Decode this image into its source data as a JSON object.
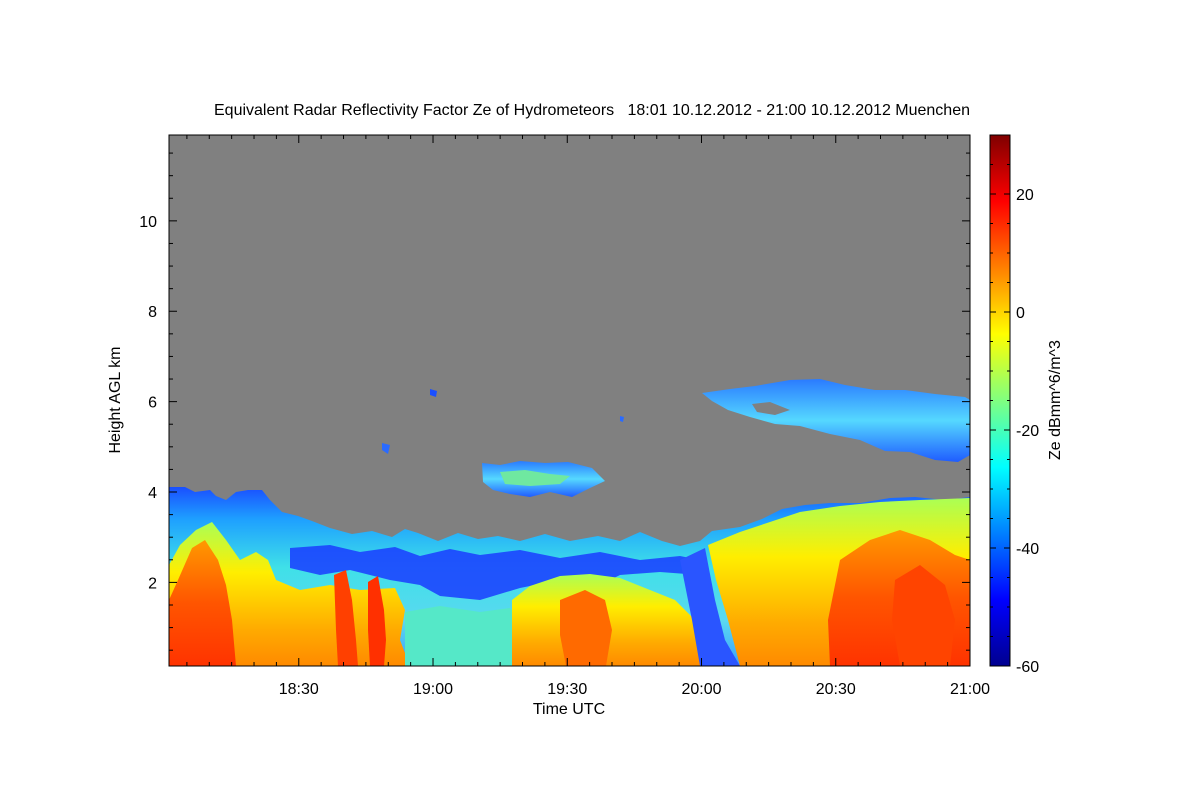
{
  "chart_data": {
    "type": "heatmap",
    "title": "Equivalent Radar Reflectivity Factor Ze of Hydrometeors   18:01 10.12.2012 - 21:00 10.12.2012 Muenchen",
    "xlabel": "Time UTC",
    "ylabel": "Height AGL km",
    "xlim": [
      "18:01",
      "21:00"
    ],
    "ylim": [
      0.15,
      11.9
    ],
    "x_ticks": [
      "18:30",
      "19:00",
      "19:30",
      "20:00",
      "20:30",
      "21:00"
    ],
    "y_ticks": [
      2,
      4,
      6,
      8,
      10
    ],
    "background": "#808080",
    "colorbar": {
      "label": "Ze dBmm^6/m^3",
      "range": [
        -60,
        30
      ],
      "ticks": [
        20,
        0,
        -20,
        -40,
        -60
      ],
      "colormap": "jet"
    },
    "regions": [
      {
        "name": "boundary-layer echo",
        "x_range": [
          "18:01",
          "21:00"
        ],
        "top_km": [
          3.0,
          4.2
        ],
        "ze_dbz": [
          -45,
          20
        ]
      },
      {
        "name": "mid-level cloud",
        "x_range": [
          "19:11",
          "19:37"
        ],
        "height_km": [
          3.9,
          4.7
        ],
        "ze_dbz": [
          -30,
          -15
        ]
      },
      {
        "name": "upper cloud",
        "x_range": [
          "20:00",
          "21:00"
        ],
        "height_km": [
          4.7,
          6.6
        ],
        "ze_dbz": [
          -40,
          -25
        ]
      }
    ],
    "grid": false,
    "legend": "colorbar-right"
  }
}
